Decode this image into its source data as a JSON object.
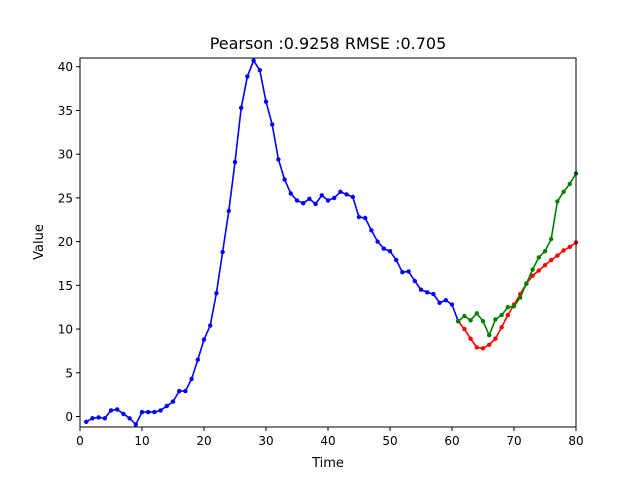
{
  "chart_data": {
    "type": "line",
    "title": "Pearson :0.9258  RMSE :0.705",
    "xlabel": "Time",
    "ylabel": "Value",
    "xlim": [
      0,
      80
    ],
    "ylim": [
      -1.2,
      41
    ],
    "xticks": [
      0,
      10,
      20,
      30,
      40,
      50,
      60,
      70,
      80
    ],
    "yticks": [
      0,
      5,
      10,
      15,
      20,
      25,
      30,
      35,
      40
    ],
    "grid": false,
    "legend": "none",
    "series": [
      {
        "color": "#0000ff",
        "x": [
          1,
          2,
          3,
          4,
          5,
          6,
          7,
          8,
          9,
          10,
          11,
          12,
          13,
          14,
          15,
          16,
          17,
          18,
          19,
          20,
          21,
          22,
          23,
          24,
          25,
          26,
          27,
          28,
          29,
          30,
          31,
          32,
          33,
          34,
          35,
          36,
          37,
          38,
          39,
          40,
          41,
          42,
          43,
          44,
          45,
          46,
          47,
          48,
          49,
          50,
          51,
          52,
          53,
          54,
          55,
          56,
          57,
          58,
          59,
          60,
          61
        ],
        "y": [
          -0.6,
          -0.2,
          -0.1,
          -0.2,
          0.7,
          0.8,
          0.3,
          -0.2,
          -0.9,
          0.5,
          0.5,
          0.5,
          0.7,
          1.2,
          1.7,
          2.9,
          2.9,
          4.3,
          6.5,
          8.8,
          10.4,
          14.1,
          18.8,
          23.5,
          29.1,
          35.3,
          38.9,
          40.7,
          39.6,
          36.0,
          33.4,
          29.4,
          27.1,
          25.5,
          24.7,
          24.4,
          24.9,
          24.3,
          25.3,
          24.7,
          25.0,
          25.7,
          25.4,
          25.1,
          22.8,
          22.7,
          21.3,
          20.0,
          19.2,
          18.9,
          17.9,
          16.5,
          16.6,
          15.5,
          14.5,
          14.2,
          14.0,
          13.0,
          13.3,
          12.8,
          10.9
        ]
      },
      {
        "color": "#ff0000",
        "x": [
          61,
          62,
          63,
          64,
          65,
          66,
          67,
          68,
          69,
          70,
          71,
          72,
          73,
          74,
          75,
          76,
          77,
          78,
          79,
          80
        ],
        "y": [
          10.9,
          10.0,
          8.9,
          7.9,
          7.8,
          8.2,
          8.9,
          10.2,
          11.6,
          12.8,
          14.0,
          15.2,
          16.1,
          16.7,
          17.3,
          17.9,
          18.4,
          19.0,
          19.4,
          19.9
        ]
      },
      {
        "color": "#008000",
        "x": [
          61,
          62,
          63,
          64,
          65,
          66,
          67,
          68,
          69,
          70,
          71,
          72,
          73,
          74,
          75,
          76,
          77,
          78,
          79,
          80
        ],
        "y": [
          10.9,
          11.5,
          11.0,
          11.8,
          10.9,
          9.3,
          11.1,
          11.6,
          12.5,
          12.6,
          13.6,
          15.2,
          16.8,
          18.2,
          18.9,
          20.3,
          24.6,
          25.7,
          26.6,
          27.8
        ]
      }
    ]
  }
}
